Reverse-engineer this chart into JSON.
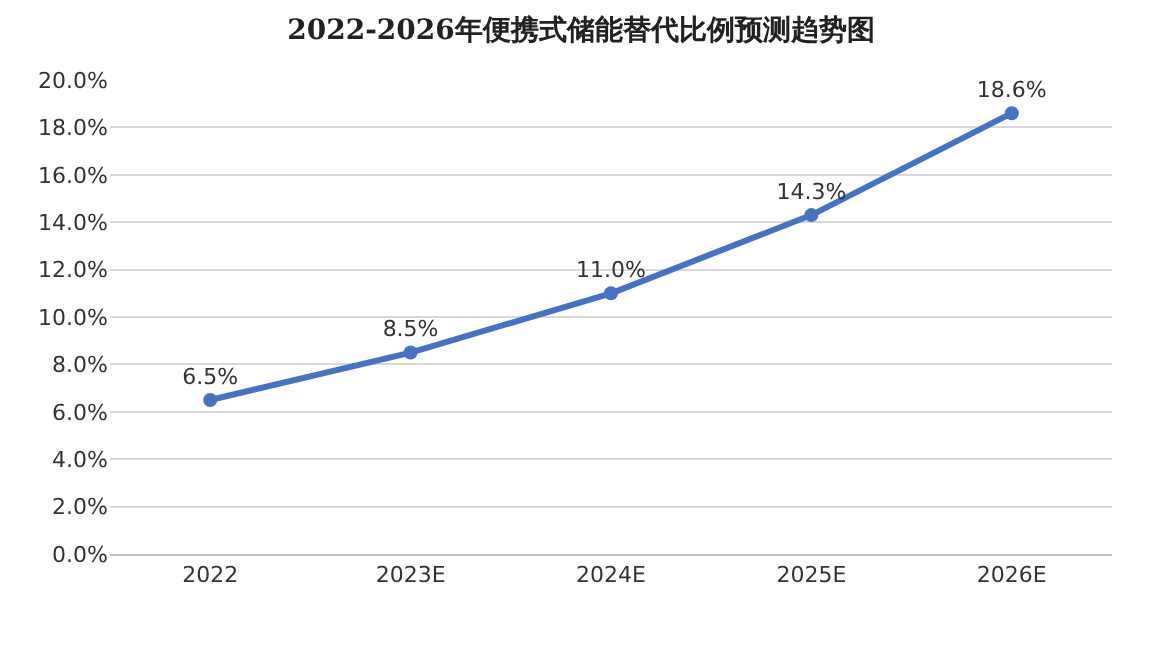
{
  "chart_data": {
    "type": "line",
    "title": "2022-2026年便携式储能替代比例预测趋势图",
    "categories": [
      "2022",
      "2023E",
      "2024E",
      "2025E",
      "2026E"
    ],
    "series": [
      {
        "color": "#4472c4",
        "values": [
          6.5,
          8.5,
          11.0,
          14.3,
          18.6
        ],
        "value_labels": [
          "6.5%",
          "8.5%",
          "11.0%",
          "14.3%",
          "18.6%"
        ]
      }
    ],
    "ylim": [
      0,
      20
    ],
    "yticks": [
      {
        "value": 0,
        "label": "0.0%"
      },
      {
        "value": 2,
        "label": "2.0%"
      },
      {
        "value": 4,
        "label": "4.0%"
      },
      {
        "value": 6,
        "label": "6.0%"
      },
      {
        "value": 8,
        "label": "8.0%"
      },
      {
        "value": 10,
        "label": "10.0%"
      },
      {
        "value": 12,
        "label": "12.0%"
      },
      {
        "value": 14,
        "label": "14.0%"
      },
      {
        "value": 16,
        "label": "16.0%"
      },
      {
        "value": 18,
        "label": "18.0%"
      },
      {
        "value": 20,
        "label": "20.0%"
      }
    ],
    "grid": "y",
    "marker": "circle",
    "line_style": "solid"
  }
}
